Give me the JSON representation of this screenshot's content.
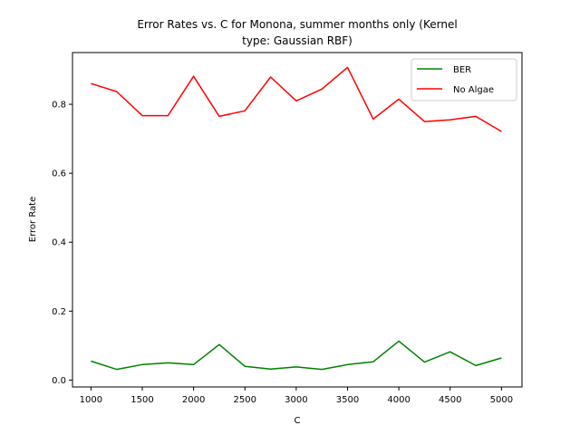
{
  "chart_data": {
    "type": "line",
    "title_line1": "Error Rates vs. C for Monona, summer months only (Kernel",
    "title_line2": "type: Gaussian RBF)",
    "xlabel": "C",
    "ylabel": "Error Rate",
    "x": [
      1000,
      1250,
      1500,
      1750,
      2000,
      2250,
      2500,
      2750,
      3000,
      3250,
      3500,
      3750,
      4000,
      4250,
      4500,
      4750,
      5000
    ],
    "xlim": [
      820,
      5200
    ],
    "ylim": [
      -0.02,
      0.95
    ],
    "xticks": [
      1000,
      1500,
      2000,
      2500,
      3000,
      3500,
      4000,
      4500,
      5000
    ],
    "xtick_labels": [
      "1000",
      "1500",
      "2000",
      "2500",
      "3000",
      "3500",
      "4000",
      "4500",
      "5000"
    ],
    "yticks": [
      0.0,
      0.2,
      0.4,
      0.6,
      0.8
    ],
    "ytick_labels": [
      "0.0",
      "0.2",
      "0.4",
      "0.6",
      "0.8"
    ],
    "grid": false,
    "legend_position": "upper right",
    "series": [
      {
        "name": "BER",
        "color": "#008000",
        "values": [
          0.055,
          0.031,
          0.045,
          0.05,
          0.045,
          0.103,
          0.04,
          0.032,
          0.038,
          0.031,
          0.045,
          0.053,
          0.113,
          0.052,
          0.082,
          0.042,
          0.064
        ]
      },
      {
        "name": "No Algae",
        "color": "#ff0000",
        "values": [
          0.86,
          0.837,
          0.767,
          0.767,
          0.881,
          0.765,
          0.781,
          0.879,
          0.81,
          0.844,
          0.907,
          0.757,
          0.815,
          0.75,
          0.755,
          0.765,
          0.721
        ]
      }
    ]
  }
}
